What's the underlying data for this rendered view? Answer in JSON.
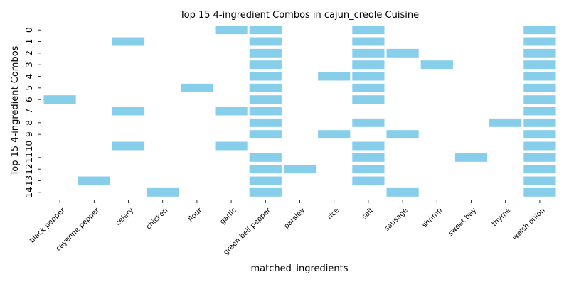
{
  "chart_data": {
    "type": "heatmap",
    "title": "Top 15 4-ingredient Combos in cajun_creole Cuisine",
    "xlabel": "matched_ingredients",
    "ylabel": "Top 15 4-ingredient Combos",
    "categories": [
      "black pepper",
      "cayenne pepper",
      "celery",
      "chicken",
      "flour",
      "garlic",
      "green bell pepper",
      "parsley",
      "rice",
      "salt",
      "sausage",
      "shrimp",
      "sweet bay",
      "thyme",
      "welsh onion"
    ],
    "rows": [
      "0",
      "1",
      "2",
      "3",
      "4",
      "5",
      "6",
      "7",
      "8",
      "9",
      "10",
      "11",
      "12",
      "13",
      "14"
    ],
    "combos": [
      [
        "garlic",
        "green bell pepper",
        "salt",
        "welsh onion"
      ],
      [
        "celery",
        "green bell pepper",
        "salt",
        "welsh onion"
      ],
      [
        "green bell pepper",
        "salt",
        "sausage",
        "welsh onion"
      ],
      [
        "green bell pepper",
        "salt",
        "shrimp",
        "welsh onion"
      ],
      [
        "green bell pepper",
        "rice",
        "salt",
        "welsh onion"
      ],
      [
        "flour",
        "green bell pepper",
        "salt",
        "welsh onion"
      ],
      [
        "black pepper",
        "green bell pepper",
        "salt",
        "welsh onion"
      ],
      [
        "celery",
        "garlic",
        "green bell pepper",
        "welsh onion"
      ],
      [
        "green bell pepper",
        "salt",
        "thyme",
        "welsh onion"
      ],
      [
        "green bell pepper",
        "rice",
        "sausage",
        "welsh onion"
      ],
      [
        "celery",
        "garlic",
        "salt",
        "welsh onion"
      ],
      [
        "green bell pepper",
        "salt",
        "sweet bay",
        "welsh onion"
      ],
      [
        "green bell pepper",
        "parsley",
        "salt",
        "welsh onion"
      ],
      [
        "cayenne pepper",
        "green bell pepper",
        "salt",
        "welsh onion"
      ],
      [
        "chicken",
        "green bell pepper",
        "sausage",
        "welsh onion"
      ]
    ],
    "cell_color": "#87ceeb",
    "background": "#ffffff",
    "grid": false,
    "legend": "none"
  }
}
